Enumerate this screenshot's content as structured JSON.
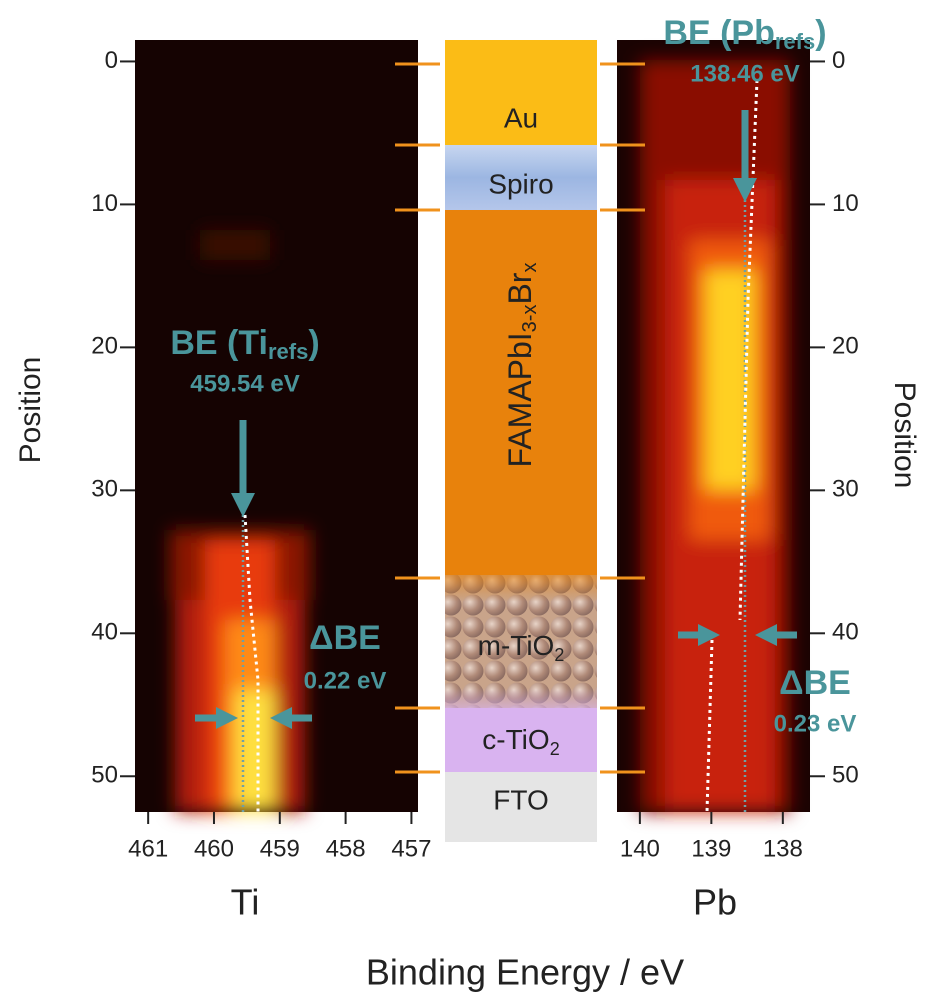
{
  "chart_data": [
    {
      "type": "heatmap",
      "xlabel": "Ti",
      "xlim": [
        461.2,
        456.9
      ],
      "xticks": [
        461,
        460,
        459,
        458,
        457
      ],
      "ylabel": "Position",
      "ylim": [
        -1.5,
        52.5
      ],
      "yticks": [
        0,
        10,
        20,
        30,
        40,
        50
      ],
      "be_ref": {
        "text": "BE (Ti",
        "sub": "refs",
        "close": ")",
        "value": "459.54 eV"
      },
      "delta": {
        "text": "ΔBE",
        "value": "0.22 eV"
      }
    },
    {
      "type": "heatmap",
      "xlabel": "Pb",
      "xlim": [
        140.32,
        137.62
      ],
      "xticks": [
        140,
        139,
        138
      ],
      "ylabel": "Position",
      "ylim": [
        -1.5,
        52.5
      ],
      "yticks": [
        0,
        10,
        20,
        30,
        40,
        50
      ],
      "be_ref": {
        "text": "BE (Pb",
        "sub": "refs",
        "close": ")",
        "value": "138.46 eV"
      },
      "delta": {
        "text": "ΔBE",
        "value": "0.23 eV"
      }
    }
  ],
  "xlabel": "Binding Energy / eV",
  "layers": [
    {
      "name": "Au"
    },
    {
      "name": "Spiro"
    },
    {
      "name": "FAMAPbI",
      "sub1": "3-x",
      "mid": "Br",
      "sub2": "x"
    },
    {
      "name": "m-TiO",
      "sub": "2"
    },
    {
      "name": "c-TiO",
      "sub": "2"
    },
    {
      "name": "FTO"
    }
  ]
}
